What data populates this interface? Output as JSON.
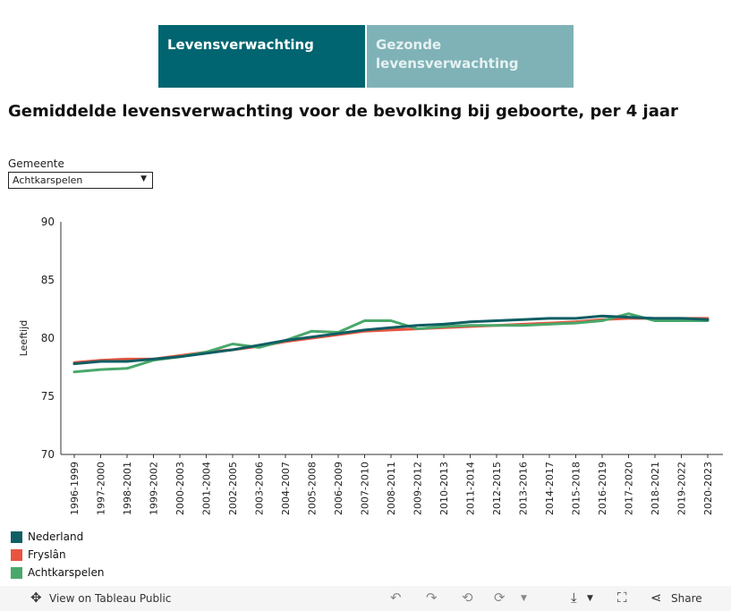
{
  "tabs": [
    {
      "label": "Levensverwachting"
    },
    {
      "label": "Gezonde levensverwachting"
    }
  ],
  "title": "Gemiddelde levensverwachting voor de bevolking bij geboorte, per 4 jaar",
  "filter": {
    "label": "Gemeente",
    "value": "Achtkarspelen"
  },
  "chart_data": {
    "type": "line",
    "ylabel": "Leeftijd",
    "xlabel": "",
    "ylim": [
      70,
      90
    ],
    "yticks": [
      70,
      75,
      80,
      85,
      90
    ],
    "categories": [
      "1996-1999",
      "1997-2000",
      "1998-2001",
      "1999-2002",
      "2000-2003",
      "2001-2004",
      "2002-2005",
      "2003-2006",
      "2004-2007",
      "2005-2008",
      "2006-2009",
      "2007-2010",
      "2008-2011",
      "2009-2012",
      "2010-2013",
      "2011-2014",
      "2012-2015",
      "2013-2016",
      "2014-2017",
      "2015-2018",
      "2016-2019",
      "2017-2020",
      "2018-2021",
      "2019-2022",
      "2020-2023"
    ],
    "series": [
      {
        "name": "Fryslân",
        "color": "#e8543f",
        "values": [
          77.9,
          78.1,
          78.2,
          78.2,
          78.5,
          78.8,
          79.0,
          79.3,
          79.7,
          80.0,
          80.3,
          80.6,
          80.7,
          80.8,
          80.9,
          81.0,
          81.1,
          81.2,
          81.3,
          81.4,
          81.6,
          81.7,
          81.7,
          81.7,
          81.7
        ]
      },
      {
        "name": "Achtkarspelen",
        "color": "#4aa86b",
        "values": [
          77.1,
          77.3,
          77.4,
          78.1,
          78.4,
          78.8,
          79.5,
          79.2,
          79.8,
          80.6,
          80.5,
          81.5,
          81.5,
          80.8,
          81.0,
          81.1,
          81.1,
          81.1,
          81.2,
          81.3,
          81.5,
          82.1,
          81.5,
          81.5,
          81.5
        ]
      },
      {
        "name": "Nederland",
        "color": "#0e5e63",
        "values": [
          77.8,
          78.0,
          78.0,
          78.2,
          78.4,
          78.7,
          79.0,
          79.4,
          79.8,
          80.1,
          80.4,
          80.7,
          80.9,
          81.1,
          81.2,
          81.4,
          81.5,
          81.6,
          81.7,
          81.7,
          81.9,
          81.8,
          81.7,
          81.7,
          81.6
        ]
      }
    ],
    "legend": [
      {
        "name": "Nederland",
        "color": "#0e5e63"
      },
      {
        "name": "Fryslân",
        "color": "#e8543f"
      },
      {
        "name": "Achtkarspelen",
        "color": "#4aa86b"
      }
    ],
    "legend_position": "bottom-left"
  },
  "footer": {
    "view_label": "View on Tableau Public",
    "share_label": "Share"
  }
}
